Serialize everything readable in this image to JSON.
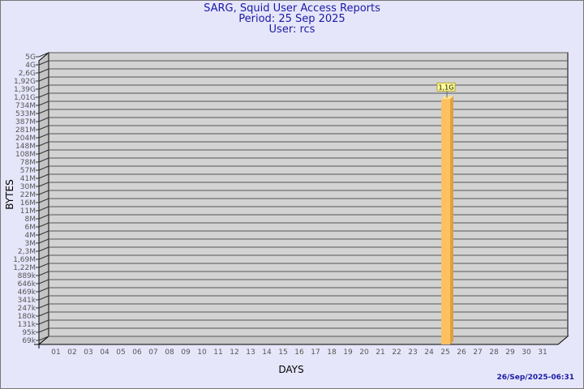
{
  "header": {
    "title": "SARG, Squid User Access Reports",
    "period": "Period: 25 Sep 2025",
    "user": "User: rcs"
  },
  "footer": {
    "timestamp": "26/Sep/2025-06:31"
  },
  "chart_data": {
    "type": "bar",
    "xlabel": "DAYS",
    "ylabel": "BYTES",
    "y_scale": "log",
    "y_tick_labels": [
      "5G",
      "4G",
      "2,6G",
      "1,92G",
      "1,39G",
      "1,01G",
      "734M",
      "533M",
      "387M",
      "281M",
      "204M",
      "148M",
      "108M",
      "78M",
      "57M",
      "41M",
      "30M",
      "22M",
      "16M",
      "11M",
      "8M",
      "6M",
      "4M",
      "3M",
      "2,3M",
      "1,69M",
      "1,22M",
      "889k",
      "646k",
      "469k",
      "341k",
      "247k",
      "180k",
      "131k",
      "95k",
      "69k"
    ],
    "categories": [
      "01",
      "02",
      "03",
      "04",
      "05",
      "06",
      "07",
      "08",
      "09",
      "10",
      "11",
      "12",
      "13",
      "14",
      "15",
      "16",
      "17",
      "18",
      "19",
      "20",
      "21",
      "22",
      "23",
      "24",
      "25",
      "26",
      "27",
      "28",
      "29",
      "30",
      "31"
    ],
    "values": [
      null,
      null,
      null,
      null,
      null,
      null,
      null,
      null,
      null,
      null,
      null,
      null,
      null,
      null,
      null,
      null,
      null,
      null,
      null,
      null,
      null,
      null,
      null,
      null,
      1100000000.0,
      null,
      null,
      null,
      null,
      null,
      null
    ],
    "data_labels": {
      "25": "1,1G"
    },
    "grid": true,
    "colors": {
      "bar": "#ffc060",
      "bar_side": "#e0a040",
      "bar_top": "#ffe090",
      "wall": "#d3d3d3",
      "title": "#1a1aa6",
      "label_box": "#ffff99"
    }
  }
}
